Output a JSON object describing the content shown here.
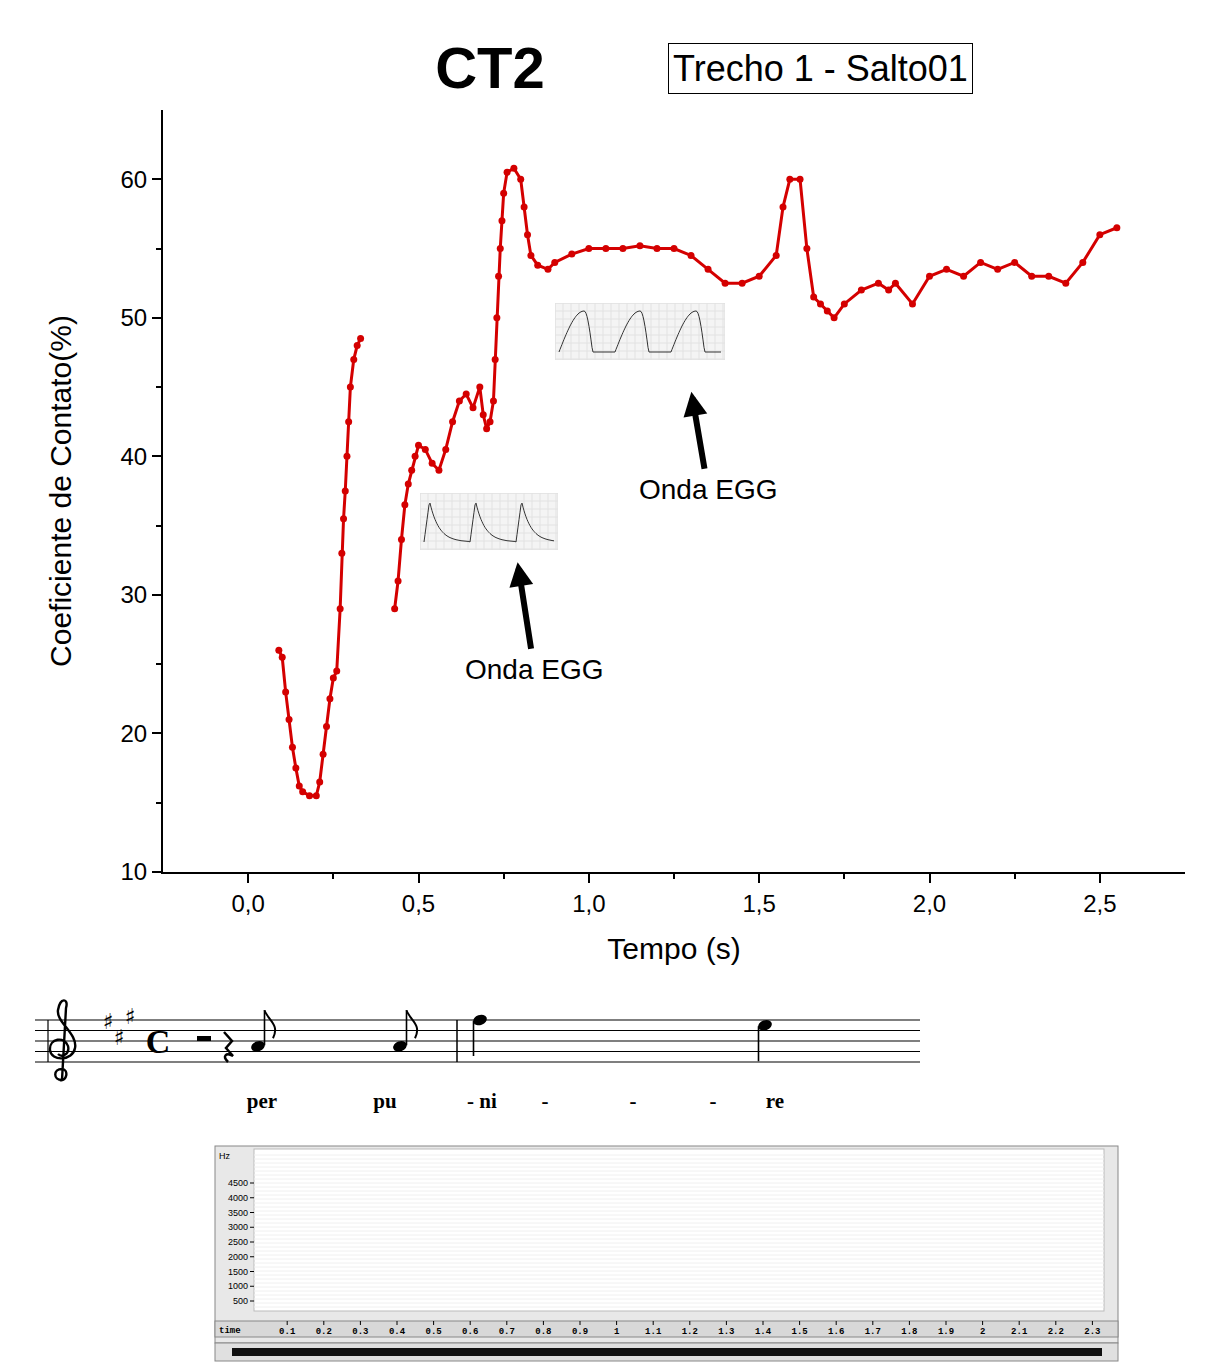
{
  "chart_data": {
    "type": "scatter",
    "title": "CT2",
    "subtitle": "Trecho 1 - Salto01",
    "x_label": "Tempo (s)",
    "y_label": "Coeficiente de Contato(%)",
    "x": [
      0.09,
      0.1,
      0.11,
      0.12,
      0.13,
      0.14,
      0.15,
      0.16,
      0.18,
      0.2,
      0.21,
      0.22,
      0.23,
      0.24,
      0.25,
      0.26,
      0.27,
      0.275,
      0.28,
      0.285,
      0.29,
      0.295,
      0.3,
      0.31,
      0.32,
      0.33,
      0.38,
      0.43,
      0.44,
      0.45,
      0.46,
      0.47,
      0.48,
      0.49,
      0.5,
      0.52,
      0.54,
      0.56,
      0.58,
      0.6,
      0.62,
      0.64,
      0.66,
      0.68,
      0.69,
      0.7,
      0.71,
      0.72,
      0.725,
      0.73,
      0.735,
      0.74,
      0.745,
      0.75,
      0.76,
      0.78,
      0.8,
      0.81,
      0.82,
      0.83,
      0.85,
      0.88,
      0.9,
      0.95,
      1.0,
      1.05,
      1.1,
      1.15,
      1.2,
      1.25,
      1.3,
      1.35,
      1.4,
      1.45,
      1.5,
      1.55,
      1.57,
      1.59,
      1.62,
      1.64,
      1.66,
      1.68,
      1.7,
      1.72,
      1.75,
      1.8,
      1.85,
      1.88,
      1.9,
      1.95,
      2.0,
      2.05,
      2.1,
      2.15,
      2.2,
      2.25,
      2.3,
      2.35,
      2.4,
      2.45,
      2.5,
      2.55
    ],
    "series": [
      {
        "color": "#d40000",
        "marker": "circle",
        "line_style": "solid",
        "values": [
          26,
          25.5,
          23,
          21,
          19,
          17.5,
          16.2,
          15.8,
          15.5,
          15.5,
          16.5,
          18.5,
          20.5,
          22.5,
          24,
          24.5,
          29,
          33,
          35.5,
          37.5,
          40,
          42.5,
          45,
          47,
          48,
          48.5,
          null,
          29,
          31,
          34,
          36.5,
          38,
          39,
          40,
          40.8,
          40.5,
          39.5,
          39,
          40.5,
          42.5,
          44,
          44.5,
          43.5,
          45,
          43,
          42,
          42.5,
          44,
          47,
          50,
          53,
          55,
          57,
          59,
          60.5,
          60.8,
          60,
          58,
          56,
          54.5,
          53.8,
          53.5,
          54,
          54.6,
          55,
          55,
          55,
          55.2,
          55,
          55,
          54.5,
          53.5,
          52.5,
          52.5,
          53,
          54.5,
          58,
          60,
          60,
          55,
          51.5,
          51,
          50.5,
          50,
          51,
          52,
          52.5,
          52,
          52.5,
          51,
          53,
          53.5,
          53,
          54,
          53.5,
          54,
          53,
          53,
          52.5,
          54,
          56,
          56.5
        ]
      }
    ],
    "xlim": [
      -0.25,
      2.75
    ],
    "xticks": [
      {
        "value": 0,
        "label": "0,0"
      },
      {
        "value": 0.5,
        "label": "0,5"
      },
      {
        "value": 1,
        "label": "1,0"
      },
      {
        "value": 1.5,
        "label": "1,5"
      },
      {
        "value": 2,
        "label": "2,0"
      },
      {
        "value": 2.5,
        "label": "2,5"
      }
    ],
    "ylim": [
      10,
      65
    ],
    "yticks": [
      10,
      20,
      30,
      40,
      50,
      60
    ],
    "grid": false,
    "annotations": [
      {
        "text": "Onda EGG",
        "x": 0.79,
        "y": 32.5,
        "text_x": 0.84,
        "text_y": 24.6
      },
      {
        "text": "Onda EGG",
        "x": 1.3,
        "y": 44.8,
        "text_x": 1.35,
        "text_y": 37.6
      }
    ]
  },
  "score": {
    "key_signature": [
      "♯",
      "♯",
      "♯"
    ],
    "time_signature": "C",
    "lyrics": [
      "per",
      "pu",
      "- ni",
      "-",
      "-",
      "-",
      "re"
    ]
  },
  "spectrogram": {
    "y_label": "Hz",
    "yticks": [
      4500,
      4000,
      3500,
      3000,
      2500,
      2000,
      1500,
      1000,
      500
    ],
    "time_label": "time",
    "xticks": [
      0.1,
      0.2,
      0.3,
      0.4,
      0.5,
      0.6,
      0.7,
      0.8,
      0.9,
      1.0,
      1.1,
      1.2,
      1.3,
      1.4,
      1.5,
      1.6,
      1.7,
      1.8,
      1.9,
      2.0,
      2.1,
      2.2,
      2.3
    ]
  }
}
